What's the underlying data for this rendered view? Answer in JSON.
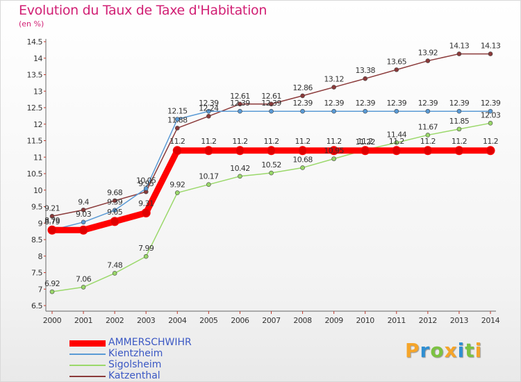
{
  "header": {
    "title": "Evolution du Taux de Taxe d'Habitation",
    "unit": "(en %)"
  },
  "logo": {
    "text": "Proxiti",
    "letters": [
      {
        "ch": "P",
        "color": "#f5a52a"
      },
      {
        "ch": "r",
        "color": "#2f8fd2"
      },
      {
        "ch": "o",
        "color": "#7cc242"
      },
      {
        "ch": "x",
        "color": "#f5a52a"
      },
      {
        "ch": "i",
        "color": "#2f8fd2"
      },
      {
        "ch": "t",
        "color": "#7cc242"
      },
      {
        "ch": "i",
        "color": "#f5a52a"
      }
    ]
  },
  "chart_data": {
    "type": "line",
    "x": [
      2000,
      2001,
      2002,
      2003,
      2004,
      2005,
      2006,
      2007,
      2008,
      2009,
      2010,
      2011,
      2012,
      2013,
      2014
    ],
    "ylim": [
      6.5,
      14.5
    ],
    "yticks": [
      6.5,
      7,
      7.5,
      8,
      8.5,
      9,
      9.5,
      10,
      10.5,
      11,
      11.5,
      12,
      12.5,
      13,
      13.5,
      14,
      14.5
    ],
    "ytick_labels": [
      "6.5",
      "7",
      "7.5",
      "8",
      "8.5",
      "9",
      "9.5",
      "10",
      "10.5",
      "11",
      "11.5",
      "12",
      "12.5",
      "13",
      "13.5",
      "14",
      "14.5"
    ],
    "grid": false,
    "legend": "bottom-left",
    "series": [
      {
        "name": "AMMERSCHWIHR",
        "color": "#ff0000",
        "values": [
          8.79,
          8.79,
          9.05,
          9.31,
          11.2,
          11.2,
          11.2,
          11.2,
          11.2,
          11.2,
          11.2,
          11.2,
          11.2,
          11.2,
          11.2
        ],
        "labels": [
          "8.79",
          "",
          "9.05",
          "9.31",
          "11.2",
          "11.2",
          "11.2",
          "11.2",
          "11.2",
          "11.2",
          "11.2",
          "11.2",
          "11.2",
          "11.2",
          "11.2"
        ]
      },
      {
        "name": "Kientzheim",
        "color": "#5a9ad5",
        "values": [
          8.79,
          9.03,
          9.39,
          10.05,
          12.15,
          12.39,
          12.39,
          12.39,
          12.39,
          12.39,
          12.39,
          12.39,
          12.39,
          12.39,
          12.39
        ],
        "labels": [
          "8.79",
          "9.03",
          "9.39",
          "10.05",
          "12.15",
          "12.39",
          "12.39",
          "12.39",
          "12.39",
          "12.39",
          "12.39",
          "12.39",
          "12.39",
          "12.39",
          "12.39"
        ]
      },
      {
        "name": "Sigolsheim",
        "color": "#9ad86a",
        "values": [
          6.92,
          7.06,
          7.48,
          7.99,
          9.92,
          10.17,
          10.42,
          10.52,
          10.68,
          10.95,
          11.22,
          11.44,
          11.67,
          11.85,
          12.03
        ],
        "labels": [
          "6.92",
          "7.06",
          "7.48",
          "7.99",
          "9.92",
          "10.17",
          "10.42",
          "10.52",
          "10.68",
          "10.95",
          "11.22",
          "11.44",
          "11.67",
          "11.85",
          "12.03"
        ]
      },
      {
        "name": "Katzenthal",
        "color": "#8b3a3a",
        "values": [
          9.21,
          9.4,
          9.68,
          9.95,
          11.88,
          12.24,
          12.61,
          12.61,
          12.86,
          13.12,
          13.38,
          13.65,
          13.92,
          14.13,
          14.13
        ],
        "labels": [
          "9.21",
          "9.4",
          "9.68",
          "9.95",
          "11.88",
          "12.24",
          "12.61",
          "12.61",
          "12.86",
          "13.12",
          "13.38",
          "13.65",
          "13.92",
          "14.13",
          "14.13"
        ]
      }
    ]
  }
}
